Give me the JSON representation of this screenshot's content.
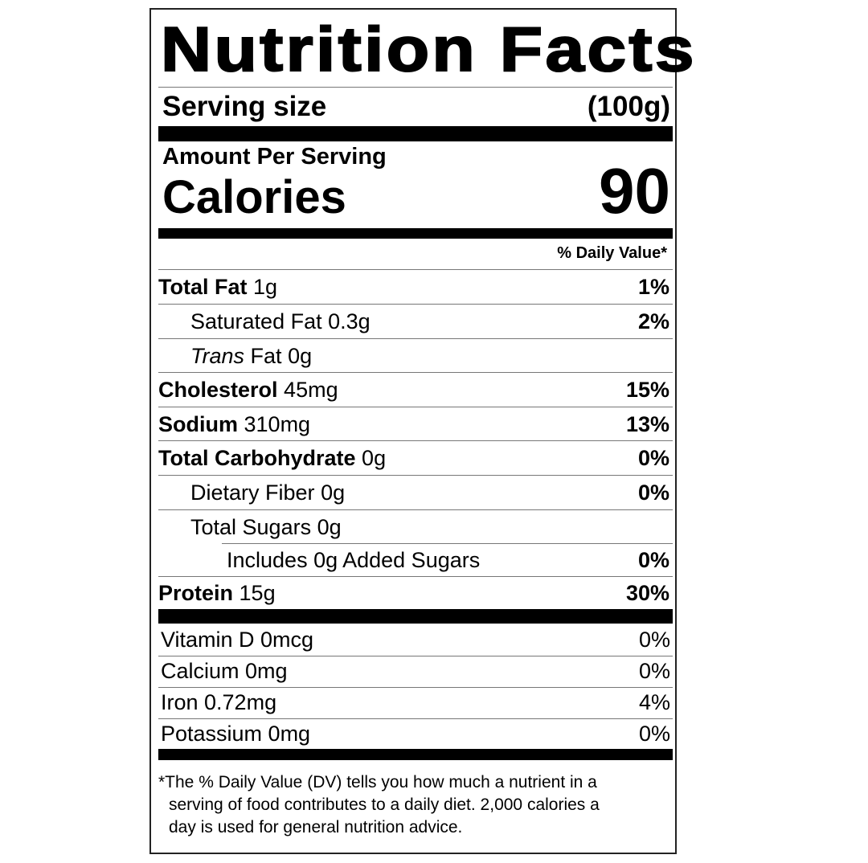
{
  "title": "Nutrition Facts",
  "serving": {
    "label": "Serving size",
    "value": "(100g)"
  },
  "amount_per_serving": "Amount Per Serving",
  "calories": {
    "label": "Calories",
    "value": "90"
  },
  "daily_value_header": "% Daily Value*",
  "nutrients": [
    {
      "name": "Total Fat",
      "amount": "1g",
      "dv": "1%"
    },
    {
      "name": "Saturated Fat",
      "amount": "0.3g",
      "dv": "2%"
    },
    {
      "name": "Trans",
      "name_rest": "Fat",
      "amount": "0g",
      "dv": ""
    },
    {
      "name": "Cholesterol",
      "amount": "45mg",
      "dv": "15%"
    },
    {
      "name": "Sodium",
      "amount": "310mg",
      "dv": "13%"
    },
    {
      "name": "Total Carbohydrate",
      "amount": "0g",
      "dv": "0%"
    },
    {
      "name": "Dietary Fiber",
      "amount": "0g",
      "dv": "0%"
    },
    {
      "name": "Total Sugars",
      "amount": "0g",
      "dv": ""
    },
    {
      "name": "Includes 0g Added Sugars",
      "amount": "",
      "dv": "0%"
    },
    {
      "name": "Protein",
      "amount": "15g",
      "dv": "30%"
    }
  ],
  "vitamins": [
    {
      "label": "Vitamin D 0mcg",
      "dv": "0%"
    },
    {
      "label": "Calcium 0mg",
      "dv": "0%"
    },
    {
      "label": "Iron 0.72mg",
      "dv": "4%"
    },
    {
      "label": "Potassium 0mg",
      "dv": "0%"
    }
  ],
  "footnote": {
    "line1": "*The % Daily Value (DV) tells you how much a nutrient in a",
    "line2": "serving of food contributes to a daily diet. 2,000 calories a",
    "line3": "day is used for general nutrition advice."
  }
}
